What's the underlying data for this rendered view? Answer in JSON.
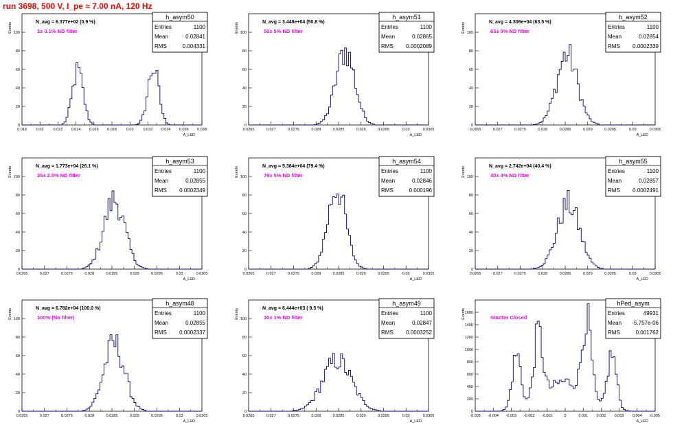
{
  "page_title": "run 3698,   500 V, I_pe ≈ 7.00 nA, 120 Hz",
  "ylabel": "Events",
  "xlabel": "A_LED",
  "colors": {
    "title": "#ff0000",
    "annotation": "#ff00ff",
    "histogram": "#000080",
    "frame": "#000000"
  },
  "chart_data": [
    {
      "type": "bar",
      "name": "h_asym50",
      "navg": "N_avg = 6.377e+02 (0.9 %)",
      "annotation": "1± 0.1% ND filter",
      "stats": {
        "entries_label": "Entries",
        "entries": "1100",
        "mean_label": "Mean",
        "mean": "0.02841",
        "rms_label": "RMS",
        "rms": "0.004331"
      },
      "xlim": [
        0.018,
        0.038
      ],
      "ylim": [
        0,
        120
      ],
      "xticks": [
        "0.018",
        "0.02",
        "0.022",
        "0.024",
        "0.026",
        "0.028",
        "0.03",
        "0.032",
        "0.034",
        "0.036",
        "0.038"
      ],
      "yticks": [
        "0",
        "20",
        "40",
        "60",
        "80",
        "100"
      ],
      "peaks": [
        {
          "mu": 0.0242,
          "sigma": 0.0006,
          "amp": 58
        },
        {
          "mu": 0.0326,
          "sigma": 0.0006,
          "amp": 62
        }
      ]
    },
    {
      "type": "bar",
      "name": "h_asym51",
      "navg": "N_avg = 3.448e+04 (50.8 %)",
      "annotation": "50± 5% ND filter",
      "stats": {
        "entries_label": "Entries",
        "entries": "1100",
        "mean_label": "Mean",
        "mean": "0.02865",
        "rms_label": "RMS",
        "rms": "0.0002089"
      },
      "xlim": [
        0.0265,
        0.0305
      ],
      "ylim": [
        0,
        120
      ],
      "xticks": [
        "0.0265",
        "0.027",
        "0.0275",
        "0.028",
        "0.0285",
        "0.029",
        "0.0295",
        "0.03",
        "0.0305"
      ],
      "yticks": [
        "0",
        "20",
        "40",
        "60",
        "80",
        "100"
      ],
      "peaks": [
        {
          "mu": 0.02865,
          "sigma": 0.00021,
          "amp": 80
        }
      ]
    },
    {
      "type": "bar",
      "name": "h_asym52",
      "navg": "N_avg = 4.306e+04 (63.5 %)",
      "annotation": "63± 5% ND filter",
      "stats": {
        "entries_label": "Entries",
        "entries": "1100",
        "mean_label": "Mean",
        "mean": "0.02854",
        "rms_label": "RMS",
        "rms": "0.0002339"
      },
      "xlim": [
        0.0265,
        0.0305
      ],
      "ylim": [
        0,
        120
      ],
      "xticks": [
        "0.0265",
        "0.027",
        "0.0275",
        "0.028",
        "0.0285",
        "0.029",
        "0.0295",
        "0.03",
        "0.0305"
      ],
      "yticks": [
        "0",
        "20",
        "40",
        "60",
        "80",
        "100"
      ],
      "peaks": [
        {
          "mu": 0.02854,
          "sigma": 0.00023,
          "amp": 76
        }
      ]
    },
    {
      "type": "bar",
      "name": "h_asym53",
      "navg": "N_avg = 1.773e+04 (26.1 %)",
      "annotation": "25± 2.5% ND filter",
      "stats": {
        "entries_label": "Entries",
        "entries": "1100",
        "mean_label": "Mean",
        "mean": "0.02855",
        "rms_label": "RMS",
        "rms": "0.0002349"
      },
      "xlim": [
        0.0265,
        0.0305
      ],
      "ylim": [
        0,
        120
      ],
      "xticks": [
        "0.0265",
        "0.027",
        "0.0275",
        "0.028",
        "0.0285",
        "0.029",
        "0.0295",
        "0.03",
        "0.0305"
      ],
      "yticks": [
        "0",
        "20",
        "40",
        "60",
        "80",
        "100"
      ],
      "peaks": [
        {
          "mu": 0.02855,
          "sigma": 0.00023,
          "amp": 75
        }
      ]
    },
    {
      "type": "bar",
      "name": "h_asym54",
      "navg": "N_avg = 5.384e+04 (79.4 %)",
      "annotation": "79± 5% ND filter",
      "stats": {
        "entries_label": "Entries",
        "entries": "1100",
        "mean_label": "Mean",
        "mean": "0.02846",
        "rms_label": "RMS",
        "rms": "0.000196"
      },
      "xlim": [
        0.0265,
        0.0305
      ],
      "ylim": [
        0,
        120
      ],
      "xticks": [
        "0.0265",
        "0.027",
        "0.0275",
        "0.028",
        "0.0285",
        "0.029",
        "0.0295",
        "0.03",
        "0.0305"
      ],
      "yticks": [
        "0",
        "20",
        "40",
        "60",
        "80",
        "100"
      ],
      "peaks": [
        {
          "mu": 0.02846,
          "sigma": 0.0002,
          "amp": 88
        }
      ]
    },
    {
      "type": "bar",
      "name": "h_asym55",
      "navg": "N_avg = 2.742e+04 (40.4 %)",
      "annotation": "40± 4% ND filter",
      "stats": {
        "entries_label": "Entries",
        "entries": "1100",
        "mean_label": "Mean",
        "mean": "0.02857",
        "rms_label": "RMS",
        "rms": "0.0002491"
      },
      "xlim": [
        0.0265,
        0.0305
      ],
      "ylim": [
        0,
        120
      ],
      "xticks": [
        "0.0265",
        "0.027",
        "0.0275",
        "0.028",
        "0.0285",
        "0.029",
        "0.0295",
        "0.03",
        "0.0305"
      ],
      "yticks": [
        "0",
        "20",
        "40",
        "60",
        "80",
        "100"
      ],
      "peaks": [
        {
          "mu": 0.02857,
          "sigma": 0.00025,
          "amp": 70
        }
      ]
    },
    {
      "type": "bar",
      "name": "h_asym48",
      "navg": "N_avg = 6.782e+04 (100.0 %)",
      "annotation": "100% (No filter)",
      "stats": {
        "entries_label": "Entries",
        "entries": "1100",
        "mean_label": "Mean",
        "mean": "0.02855",
        "rms_label": "RMS",
        "rms": "0.0002337"
      },
      "xlim": [
        0.0265,
        0.0305
      ],
      "ylim": [
        0,
        120
      ],
      "xticks": [
        "0.0265",
        "0.027",
        "0.0275",
        "0.028",
        "0.0285",
        "0.029",
        "0.0295",
        "0.03",
        "0.0305"
      ],
      "yticks": [
        "0",
        "20",
        "40",
        "60",
        "80",
        "100"
      ],
      "peaks": [
        {
          "mu": 0.02855,
          "sigma": 0.00023,
          "amp": 73
        }
      ]
    },
    {
      "type": "bar",
      "name": "h_asym49",
      "navg": "N_avg = 6.444e+03 ( 9.5 %)",
      "annotation": "10± 1% ND filter",
      "stats": {
        "entries_label": "Entries",
        "entries": "1100",
        "mean_label": "Mean",
        "mean": "0.02847",
        "rms_label": "RMS",
        "rms": "0.0003252"
      },
      "xlim": [
        0.0265,
        0.0305
      ],
      "ylim": [
        0,
        120
      ],
      "xticks": [
        "0.0265",
        "0.027",
        "0.0275",
        "0.028",
        "0.0285",
        "0.029",
        "0.0295",
        "0.03",
        "0.0305"
      ],
      "yticks": [
        "0",
        "20",
        "40",
        "60",
        "80",
        "100"
      ],
      "peaks": [
        {
          "mu": 0.02847,
          "sigma": 0.00032,
          "amp": 55
        }
      ]
    },
    {
      "type": "bar",
      "name": "hPed_asym",
      "navg": "",
      "annotation": "Shutter Closed",
      "stats": {
        "entries_label": "Entries",
        "entries": "49931",
        "mean_label": "Mean",
        "mean": "-5.757e-06",
        "rms_label": "RMS",
        "rms": "0.001762"
      },
      "xlim": [
        -0.005,
        0.005
      ],
      "ylim": [
        0,
        1800
      ],
      "xticks": [
        "-0.005",
        "-0.004",
        "-0.003",
        "-0.002",
        "-0.001",
        "0",
        "0.001",
        "0.002",
        "0.003",
        "0.004",
        "0.005"
      ],
      "yticks": [
        "0",
        "200",
        "400",
        "600",
        "800",
        "1000",
        "1200",
        "1400",
        "1600"
      ],
      "peaks": [
        {
          "mu": -0.0015,
          "sigma": 0.00025,
          "amp": 1100
        },
        {
          "mu": -0.0027,
          "sigma": 0.00025,
          "amp": 900
        },
        {
          "mu": 0.0012,
          "sigma": 0.00025,
          "amp": 1250
        },
        {
          "mu": 0.0026,
          "sigma": 0.00025,
          "amp": 900
        },
        {
          "mu": 0.0,
          "sigma": 0.0011,
          "amp": 480
        }
      ]
    }
  ]
}
